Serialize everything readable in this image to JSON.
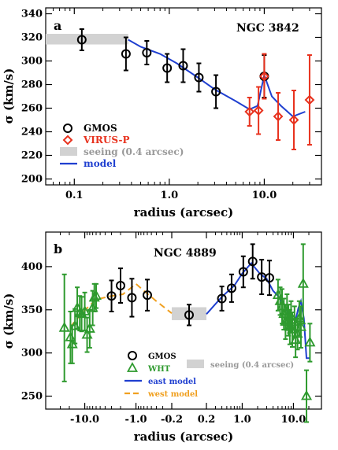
{
  "chart_data": [
    {
      "panel": "a",
      "galaxy": "NGC 3842",
      "type": "scatter",
      "xscale": "log",
      "xlabel": "radius  (arcsec)",
      "ylabel": "σ (km/s)",
      "xlim": [
        0.05,
        40
      ],
      "ylim": [
        195,
        345
      ],
      "xticks": [
        0.1,
        1.0,
        10.0
      ],
      "xtick_labels": [
        "0.1",
        "1.0",
        "10.0"
      ],
      "yticks": [
        200,
        220,
        240,
        260,
        280,
        300,
        320,
        340
      ],
      "seeing_band": {
        "x": [
          0.05,
          0.37
        ],
        "y": [
          314,
          323
        ]
      },
      "series": [
        {
          "name": "GMOS",
          "marker": "circle",
          "color": "#000000",
          "points": [
            {
              "x": 0.12,
              "y": 318,
              "err": 9
            },
            {
              "x": 0.35,
              "y": 306,
              "err": 14
            },
            {
              "x": 0.58,
              "y": 307,
              "err": 10
            },
            {
              "x": 0.95,
              "y": 294,
              "err": 12
            },
            {
              "x": 1.4,
              "y": 296,
              "err": 14
            },
            {
              "x": 2.05,
              "y": 286,
              "err": 12
            },
            {
              "x": 3.1,
              "y": 274,
              "err": 14
            },
            {
              "x": 10.0,
              "y": 287,
              "err": 18
            }
          ]
        },
        {
          "name": "VIRUS-P",
          "marker": "diamond",
          "color": "#e8321e",
          "points": [
            {
              "x": 7.0,
              "y": 257,
              "err": 12
            },
            {
              "x": 8.7,
              "y": 258,
              "err": 20
            },
            {
              "x": 10.0,
              "y": 287,
              "err": 19
            },
            {
              "x": 14.0,
              "y": 253,
              "err": 20
            },
            {
              "x": 20.5,
              "y": 250,
              "err": 25
            },
            {
              "x": 30.0,
              "y": 267,
              "err": 38
            }
          ]
        },
        {
          "name": "model",
          "type": "line",
          "color": "#1f3fd0",
          "points": [
            {
              "x": 0.37,
              "y": 318
            },
            {
              "x": 0.5,
              "y": 312
            },
            {
              "x": 0.8,
              "y": 306
            },
            {
              "x": 1.2,
              "y": 298
            },
            {
              "x": 2.0,
              "y": 286
            },
            {
              "x": 3.0,
              "y": 276
            },
            {
              "x": 5.0,
              "y": 266
            },
            {
              "x": 7.0,
              "y": 259
            },
            {
              "x": 8.5,
              "y": 262
            },
            {
              "x": 10.0,
              "y": 288
            },
            {
              "x": 12.0,
              "y": 270
            },
            {
              "x": 15.0,
              "y": 262
            },
            {
              "x": 20.0,
              "y": 253
            },
            {
              "x": 27.0,
              "y": 257
            }
          ]
        }
      ],
      "legend": [
        {
          "label": "GMOS",
          "marker": "circle",
          "color": "#000000"
        },
        {
          "label": "VIRUS-P",
          "marker": "diamond",
          "color": "#e8321e"
        },
        {
          "label": "seeing  (0.4 arcsec)",
          "marker": "band",
          "color": "#999999"
        },
        {
          "label": "model",
          "marker": "line",
          "color": "#1f3fd0"
        }
      ]
    },
    {
      "panel": "b",
      "galaxy": "NGC 4889",
      "type": "scatter",
      "xscale": "symmetric-log",
      "xlabel": "radius  (arcsec)",
      "ylabel": "σ (km/s)",
      "ylim": [
        235,
        440
      ],
      "xticks": [
        -10.0,
        -1.0,
        -0.2,
        0.2,
        1.0,
        10.0
      ],
      "xtick_labels": [
        "-10.0",
        "-1.0",
        "-0.2",
        "0.2",
        "1.0",
        "10.0"
      ],
      "yticks": [
        250,
        300,
        350,
        400
      ],
      "seeing_band": {
        "x": [
          -0.2,
          0.2
        ],
        "y": [
          338,
          353
        ]
      },
      "series": [
        {
          "name": "GMOS",
          "marker": "circle",
          "color": "#000000",
          "points": [
            {
              "x": -3.0,
              "y": 366,
              "err": 18
            },
            {
              "x": -2.0,
              "y": 378,
              "err": 20
            },
            {
              "x": -1.2,
              "y": 364,
              "err": 22
            },
            {
              "x": -0.6,
              "y": 367,
              "err": 18
            },
            {
              "x": 0.0,
              "y": 344,
              "err": 12
            },
            {
              "x": 0.4,
              "y": 363,
              "err": 14
            },
            {
              "x": 0.62,
              "y": 375,
              "err": 16
            },
            {
              "x": 1.05,
              "y": 394,
              "err": 18
            },
            {
              "x": 1.6,
              "y": 406,
              "err": 20
            },
            {
              "x": 2.4,
              "y": 388,
              "err": 20
            },
            {
              "x": 3.4,
              "y": 387,
              "err": 20
            }
          ]
        },
        {
          "name": "WHT",
          "marker": "triangle",
          "color": "#2e9a2e",
          "points": [
            {
              "x": -25.0,
              "y": 329,
              "err": 62
            },
            {
              "x": -19.0,
              "y": 318,
              "err": 30
            },
            {
              "x": -17.5,
              "y": 310,
              "err": 22
            },
            {
              "x": -15.5,
              "y": 331,
              "err": 20
            },
            {
              "x": -14.0,
              "y": 352,
              "err": 24
            },
            {
              "x": -12.5,
              "y": 346,
              "err": 20
            },
            {
              "x": -11.5,
              "y": 345,
              "err": 20
            },
            {
              "x": -10.0,
              "y": 348,
              "err": 22
            },
            {
              "x": -9.0,
              "y": 321,
              "err": 20
            },
            {
              "x": -8.0,
              "y": 328,
              "err": 22
            },
            {
              "x": -7.0,
              "y": 352,
              "err": 20
            },
            {
              "x": -6.5,
              "y": 364,
              "err": 16
            },
            {
              "x": -6.0,
              "y": 366,
              "err": 14
            },
            {
              "x": 5.0,
              "y": 367,
              "err": 18
            },
            {
              "x": 5.5,
              "y": 360,
              "err": 16
            },
            {
              "x": 6.0,
              "y": 354,
              "err": 20
            },
            {
              "x": 6.5,
              "y": 345,
              "err": 18
            },
            {
              "x": 7.0,
              "y": 336,
              "err": 20
            },
            {
              "x": 7.5,
              "y": 348,
              "err": 20
            },
            {
              "x": 8.0,
              "y": 338,
              "err": 18
            },
            {
              "x": 8.5,
              "y": 330,
              "err": 20
            },
            {
              "x": 9.0,
              "y": 342,
              "err": 18
            },
            {
              "x": 9.5,
              "y": 327,
              "err": 20
            },
            {
              "x": 10.5,
              "y": 336,
              "err": 18
            },
            {
              "x": 11.0,
              "y": 315,
              "err": 20
            },
            {
              "x": 12.0,
              "y": 322,
              "err": 18
            },
            {
              "x": 13.0,
              "y": 340,
              "err": 20
            },
            {
              "x": 14.0,
              "y": 330,
              "err": 24
            },
            {
              "x": 15.5,
              "y": 380,
              "err": 46
            },
            {
              "x": 18.0,
              "y": 250,
              "err": 30
            },
            {
              "x": 21.0,
              "y": 312,
              "err": 22
            }
          ]
        },
        {
          "name": "east model",
          "type": "line",
          "color": "#1f3fd0",
          "points": [
            {
              "x": 0.2,
              "y": 345
            },
            {
              "x": 0.4,
              "y": 365
            },
            {
              "x": 0.7,
              "y": 378
            },
            {
              "x": 1.0,
              "y": 392
            },
            {
              "x": 1.5,
              "y": 404
            },
            {
              "x": 2.2,
              "y": 392
            },
            {
              "x": 3.0,
              "y": 386
            },
            {
              "x": 4.0,
              "y": 372
            },
            {
              "x": 5.0,
              "y": 366
            },
            {
              "x": 6.5,
              "y": 356
            },
            {
              "x": 8.0,
              "y": 345
            },
            {
              "x": 9.5,
              "y": 340
            },
            {
              "x": 11.0,
              "y": 338
            },
            {
              "x": 12.5,
              "y": 352
            },
            {
              "x": 14.0,
              "y": 360
            },
            {
              "x": 16.0,
              "y": 340
            },
            {
              "x": 18.0,
              "y": 294
            },
            {
              "x": 21.0,
              "y": 294
            }
          ]
        },
        {
          "name": "west model",
          "type": "line",
          "color": "#f0a020",
          "dash": true,
          "points": [
            {
              "x": -19.0,
              "y": 330
            },
            {
              "x": -15.0,
              "y": 338
            },
            {
              "x": -12.0,
              "y": 344
            },
            {
              "x": -9.0,
              "y": 352
            },
            {
              "x": -6.0,
              "y": 362
            },
            {
              "x": -3.0,
              "y": 366
            },
            {
              "x": -1.8,
              "y": 368
            },
            {
              "x": -1.0,
              "y": 380
            },
            {
              "x": -0.7,
              "y": 372
            },
            {
              "x": -0.4,
              "y": 360
            },
            {
              "x": -0.2,
              "y": 346
            }
          ]
        }
      ],
      "legend": [
        {
          "label": "GMOS",
          "marker": "circle",
          "color": "#000000"
        },
        {
          "label": "WHT",
          "marker": "triangle",
          "color": "#2e9a2e"
        },
        {
          "label": "east model",
          "marker": "line",
          "color": "#1f3fd0"
        },
        {
          "label": "west model",
          "marker": "dash",
          "color": "#f0a020"
        },
        {
          "label": "seeing  (0.4 arcsec)",
          "marker": "band",
          "color": "#999999"
        }
      ]
    }
  ]
}
